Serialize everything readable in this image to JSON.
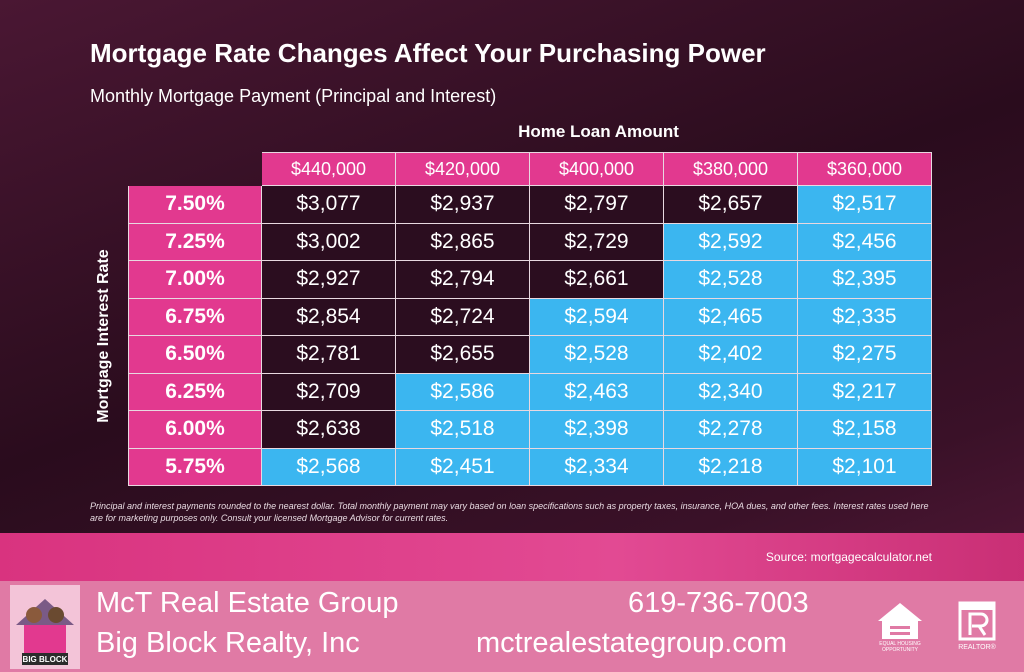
{
  "header": {
    "title": "Mortgage Rate Changes Affect Your Purchasing Power",
    "subtitle": "Monthly Mortgage Payment (Principal and Interest)"
  },
  "table": {
    "column_header": "Home Loan Amount",
    "row_header": "Mortgage Interest Rate",
    "columns": [
      "$440,000",
      "$420,000",
      "$400,000",
      "$380,000",
      "$360,000"
    ],
    "rows": [
      {
        "rate": "7.50%",
        "payments": [
          "$3,077",
          "$2,937",
          "$2,797",
          "$2,657",
          "$2,517"
        ],
        "cell_colors": [
          "#2b0d1f",
          "#2b0d1f",
          "#2b0d1f",
          "#2b0d1f",
          "#3bb6f0"
        ]
      },
      {
        "rate": "7.25%",
        "payments": [
          "$3,002",
          "$2,865",
          "$2,729",
          "$2,592",
          "$2,456"
        ],
        "cell_colors": [
          "#2b0d1f",
          "#2b0d1f",
          "#2b0d1f",
          "#3bb6f0",
          "#3bb6f0"
        ]
      },
      {
        "rate": "7.00%",
        "payments": [
          "$2,927",
          "$2,794",
          "$2,661",
          "$2,528",
          "$2,395"
        ],
        "cell_colors": [
          "#2b0d1f",
          "#2b0d1f",
          "#2b0d1f",
          "#3bb6f0",
          "#3bb6f0"
        ]
      },
      {
        "rate": "6.75%",
        "payments": [
          "$2,854",
          "$2,724",
          "$2,594",
          "$2,465",
          "$2,335"
        ],
        "cell_colors": [
          "#2b0d1f",
          "#2b0d1f",
          "#3bb6f0",
          "#3bb6f0",
          "#3bb6f0"
        ]
      },
      {
        "rate": "6.50%",
        "payments": [
          "$2,781",
          "$2,655",
          "$2,528",
          "$2,402",
          "$2,275"
        ],
        "cell_colors": [
          "#2b0d1f",
          "#2b0d1f",
          "#3bb6f0",
          "#3bb6f0",
          "#3bb6f0"
        ]
      },
      {
        "rate": "6.25%",
        "payments": [
          "$2,709",
          "$2,586",
          "$2,463",
          "$2,340",
          "$2,217"
        ],
        "cell_colors": [
          "#2b0d1f",
          "#3bb6f0",
          "#3bb6f0",
          "#3bb6f0",
          "#3bb6f0"
        ]
      },
      {
        "rate": "6.00%",
        "payments": [
          "$2,638",
          "$2,518",
          "$2,398",
          "$2,278",
          "$2,158"
        ],
        "cell_colors": [
          "#2b0d1f",
          "#3bb6f0",
          "#3bb6f0",
          "#3bb6f0",
          "#3bb6f0"
        ]
      },
      {
        "rate": "5.75%",
        "payments": [
          "$2,568",
          "$2,451",
          "$2,334",
          "$2,218",
          "$2,101"
        ],
        "cell_colors": [
          "#3bb6f0",
          "#3bb6f0",
          "#3bb6f0",
          "#3bb6f0",
          "#3bb6f0"
        ]
      }
    ]
  },
  "footnote": "Principal and interest payments rounded to the nearest dollar. Total monthly payment may vary based on loan specifications such as property taxes, insurance, HOA dues, and other fees. Interest rates used here are for marketing purposes only. Consult your licensed Mortgage Advisor for current rates.",
  "source": "Source: mortgagecalculator.net",
  "footer": {
    "logo_text": "BIG BLOCK",
    "company": "McT Real Estate Group",
    "brokerage": "Big Block Realty, Inc",
    "phone": "619-736-7003",
    "website": "mctrealestategroup.com",
    "equal_housing": "EQUAL HOUSING OPPORTUNITY",
    "realtor": "REALTOR®"
  }
}
